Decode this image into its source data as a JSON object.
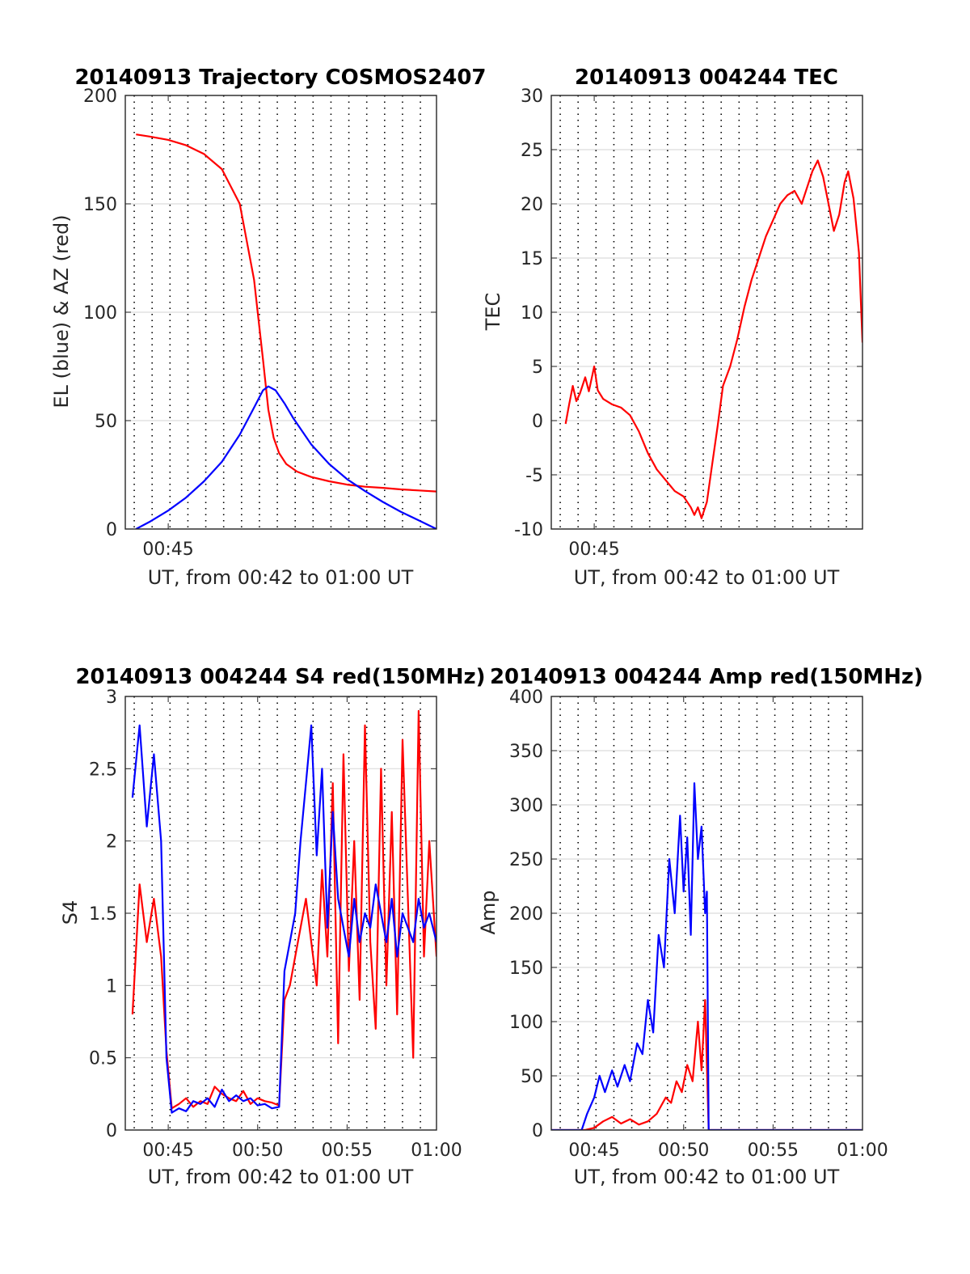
{
  "figure": {
    "background": "#ffffff"
  },
  "colors": {
    "red": "#ff0000",
    "blue": "#0000ff",
    "grid_major": "#dcdcdc",
    "grid_minor": "#000000",
    "axis": "#262626"
  },
  "chart_data": [
    {
      "id": "trajectory",
      "type": "line",
      "title": "20140913 Trajectory COSMOS2407",
      "xlabel": "UT, from 00:42 to 01:00 UT",
      "ylabel": "EL (blue) & AZ (red)",
      "xlim": [
        42.6,
        60.0
      ],
      "ylim": [
        0,
        200
      ],
      "yticks": [
        0,
        50,
        100,
        150,
        200
      ],
      "xtick_labels": [
        {
          "x": 45,
          "label": "00:45"
        }
      ],
      "grid": true,
      "minor_grid_x": [
        43.1,
        44.1,
        45.1,
        46.1,
        47.1,
        48.1,
        49.1,
        50.1,
        51.1,
        52.1,
        53.1,
        54.1,
        55.1,
        56.1,
        57.1,
        58.1,
        59.1
      ],
      "series": [
        {
          "color": "#ff0000",
          "x": [
            43.2,
            44,
            45,
            46,
            47,
            48,
            49,
            49.8,
            50.3,
            50.6,
            50.9,
            51.2,
            51.6,
            52.2,
            53,
            54,
            55,
            56,
            57,
            58,
            59,
            60
          ],
          "y": [
            182,
            181,
            179.5,
            177,
            173,
            166,
            150,
            115,
            78,
            55,
            42,
            35,
            30,
            26.5,
            24,
            22,
            20.5,
            19.5,
            19,
            18.3,
            17.8,
            17.3
          ]
        },
        {
          "color": "#0000ff",
          "x": [
            43.2,
            44,
            45,
            46,
            47,
            48,
            49,
            49.8,
            50.3,
            50.6,
            51,
            51.5,
            52,
            53,
            54,
            55,
            56,
            57,
            58,
            59,
            60
          ],
          "y": [
            0,
            3.5,
            8.5,
            14.5,
            22,
            31,
            43.5,
            56,
            64,
            65.8,
            64,
            58,
            51,
            39,
            30,
            23,
            17.5,
            12.5,
            8,
            4,
            0
          ]
        }
      ]
    },
    {
      "id": "tec",
      "type": "line",
      "title": "20140913 004244 TEC",
      "xlabel": "UT, from 00:42 to 01:00 UT",
      "ylabel": "TEC",
      "xlim": [
        42.6,
        60.0
      ],
      "ylim": [
        -10,
        30
      ],
      "yticks": [
        -10,
        -5,
        0,
        5,
        10,
        15,
        20,
        25,
        30
      ],
      "xtick_labels": [
        {
          "x": 45,
          "label": "00:45"
        }
      ],
      "grid": true,
      "minor_grid_x": [
        43.1,
        44.1,
        45.1,
        46.1,
        47.1,
        48.1,
        49.1,
        50.1,
        51.1,
        52.1,
        53.1,
        54.1,
        55.1,
        56.1,
        57.1,
        58.1,
        59.1
      ],
      "series": [
        {
          "color": "#ff0000",
          "x": [
            43.4,
            43.6,
            43.8,
            44.0,
            44.2,
            44.5,
            44.7,
            45.0,
            45.2,
            45.5,
            46.0,
            46.5,
            47.0,
            47.5,
            48.0,
            48.5,
            49.0,
            49.5,
            50.0,
            50.4,
            50.6,
            50.8,
            51.0,
            51.3,
            51.6,
            51.9,
            52.2,
            52.6,
            53.0,
            53.4,
            53.8,
            54.2,
            54.6,
            55.0,
            55.4,
            55.8,
            56.2,
            56.6,
            57.0,
            57.2,
            57.5,
            57.8,
            58.1,
            58.4,
            58.7,
            59.0,
            59.2,
            59.5,
            59.8,
            60.0
          ],
          "y": [
            -0.3,
            1.5,
            3.2,
            1.8,
            2.5,
            4.0,
            2.7,
            5.0,
            2.8,
            2.0,
            1.5,
            1.2,
            0.5,
            -1.0,
            -3.0,
            -4.5,
            -5.5,
            -6.5,
            -7.0,
            -8.0,
            -8.7,
            -8.0,
            -9.0,
            -7.5,
            -4.0,
            -0.5,
            3.2,
            5.0,
            7.5,
            10.5,
            13.0,
            15.0,
            17.0,
            18.5,
            20.0,
            20.8,
            21.2,
            20.0,
            22.0,
            23.0,
            24.0,
            22.5,
            20.0,
            17.5,
            19.0,
            22.0,
            23.0,
            20.5,
            15.5,
            7.2
          ]
        }
      ]
    },
    {
      "id": "s4",
      "type": "line",
      "title": "20140913 004244 S4 red(150MHz)",
      "xlabel": "UT, from 00:42 to 01:00 UT",
      "ylabel": "S4",
      "xlim": [
        42.6,
        60.0
      ],
      "ylim": [
        0,
        3
      ],
      "yticks": [
        0,
        0.5,
        1,
        1.5,
        2,
        2.5,
        3
      ],
      "xtick_labels": [
        {
          "x": 45,
          "label": "00:45"
        },
        {
          "x": 50,
          "label": "00:50"
        },
        {
          "x": 55,
          "label": "00:55"
        },
        {
          "x": 60,
          "label": "01:00"
        }
      ],
      "grid": true,
      "minor_grid_x": [
        43.1,
        44.1,
        45.1,
        46.1,
        47.1,
        48.1,
        49.1,
        50.1,
        51.1,
        52.1,
        53.1,
        54.1,
        55.1,
        56.1,
        57.1,
        58.1,
        59.1
      ],
      "series": [
        {
          "color": "#ff0000",
          "x": [
            43.0,
            43.4,
            43.8,
            44.2,
            44.6,
            44.9,
            45.2,
            45.6,
            46.0,
            46.4,
            46.8,
            47.2,
            47.6,
            48.0,
            48.4,
            48.8,
            49.2,
            49.6,
            50.0,
            50.4,
            50.8,
            51.2,
            51.5,
            51.8,
            52.1,
            52.4,
            52.7,
            53.0,
            53.3,
            53.6,
            53.9,
            54.2,
            54.5,
            54.8,
            55.1,
            55.4,
            55.7,
            56.0,
            56.3,
            56.6,
            56.9,
            57.2,
            57.5,
            57.8,
            58.1,
            58.4,
            58.7,
            59.0,
            59.3,
            59.6,
            60.0
          ],
          "y": [
            0.8,
            1.7,
            1.3,
            1.6,
            1.2,
            0.55,
            0.15,
            0.18,
            0.22,
            0.16,
            0.2,
            0.18,
            0.3,
            0.25,
            0.22,
            0.2,
            0.27,
            0.18,
            0.22,
            0.2,
            0.19,
            0.17,
            0.9,
            1.0,
            1.2,
            1.4,
            1.6,
            1.3,
            1.0,
            1.8,
            1.2,
            2.4,
            0.6,
            2.6,
            1.1,
            2.0,
            0.9,
            2.8,
            1.3,
            0.7,
            2.5,
            1.0,
            2.2,
            0.8,
            2.7,
            1.6,
            0.5,
            2.9,
            1.2,
            2.0,
            1.2
          ]
        },
        {
          "color": "#0000ff",
          "x": [
            43.0,
            43.4,
            43.8,
            44.2,
            44.6,
            44.9,
            45.2,
            45.6,
            46.0,
            46.4,
            46.8,
            47.2,
            47.6,
            48.0,
            48.4,
            48.8,
            49.2,
            49.6,
            50.0,
            50.4,
            50.8,
            51.2,
            51.5,
            51.8,
            52.1,
            52.4,
            52.7,
            53.0,
            53.3,
            53.6,
            53.9,
            54.2,
            54.5,
            54.8,
            55.1,
            55.4,
            55.7,
            56.0,
            56.3,
            56.6,
            56.9,
            57.2,
            57.5,
            57.8,
            58.1,
            58.4,
            58.7,
            59.0,
            59.3,
            59.6,
            60.0
          ],
          "y": [
            2.3,
            2.8,
            2.1,
            2.6,
            2.0,
            0.5,
            0.12,
            0.15,
            0.13,
            0.2,
            0.18,
            0.22,
            0.16,
            0.28,
            0.2,
            0.24,
            0.2,
            0.22,
            0.17,
            0.18,
            0.15,
            0.16,
            1.1,
            1.3,
            1.5,
            2.0,
            2.4,
            2.8,
            1.9,
            2.5,
            1.4,
            2.2,
            1.6,
            1.4,
            1.2,
            1.6,
            1.3,
            1.5,
            1.4,
            1.7,
            1.5,
            1.3,
            1.6,
            1.2,
            1.5,
            1.4,
            1.3,
            1.6,
            1.4,
            1.5,
            1.3
          ]
        }
      ]
    },
    {
      "id": "amp",
      "type": "line",
      "title": "20140913 004244 Amp red(150MHz)",
      "xlabel": "UT, from 00:42 to 01:00 UT",
      "ylabel": "Amp",
      "xlim": [
        42.6,
        60.0
      ],
      "ylim": [
        0,
        400
      ],
      "yticks": [
        0,
        50,
        100,
        150,
        200,
        250,
        300,
        350,
        400
      ],
      "xtick_labels": [
        {
          "x": 45,
          "label": "00:45"
        },
        {
          "x": 50,
          "label": "00:50"
        },
        {
          "x": 55,
          "label": "00:55"
        },
        {
          "x": 60,
          "label": "01:00"
        }
      ],
      "grid": true,
      "minor_grid_x": [
        43.1,
        44.1,
        45.1,
        46.1,
        47.1,
        48.1,
        49.1,
        50.1,
        51.1,
        52.1,
        53.1,
        54.1,
        55.1,
        56.1,
        57.1,
        58.1,
        59.1
      ],
      "series": [
        {
          "color": "#ff0000",
          "x": [
            42.6,
            44.5,
            45.0,
            45.5,
            46.0,
            46.5,
            47.0,
            47.5,
            48.0,
            48.5,
            49.0,
            49.3,
            49.6,
            49.9,
            50.2,
            50.5,
            50.8,
            51.0,
            51.2,
            51.3,
            51.4,
            52.0,
            60.0
          ],
          "y": [
            0,
            0,
            2,
            8,
            12,
            6,
            10,
            5,
            8,
            15,
            30,
            25,
            45,
            35,
            60,
            45,
            100,
            55,
            120,
            60,
            0,
            0,
            0
          ]
        },
        {
          "color": "#0000ff",
          "x": [
            42.6,
            44.3,
            44.6,
            45.0,
            45.3,
            45.6,
            46.0,
            46.3,
            46.7,
            47.0,
            47.4,
            47.7,
            48.0,
            48.3,
            48.6,
            48.9,
            49.2,
            49.5,
            49.8,
            50.0,
            50.2,
            50.4,
            50.6,
            50.8,
            51.0,
            51.2,
            51.3,
            51.4,
            52.0,
            60.0
          ],
          "y": [
            0,
            0,
            15,
            30,
            50,
            35,
            55,
            40,
            60,
            45,
            80,
            70,
            120,
            90,
            180,
            150,
            250,
            200,
            290,
            220,
            270,
            180,
            320,
            250,
            280,
            200,
            220,
            0,
            0,
            0
          ]
        }
      ]
    }
  ]
}
